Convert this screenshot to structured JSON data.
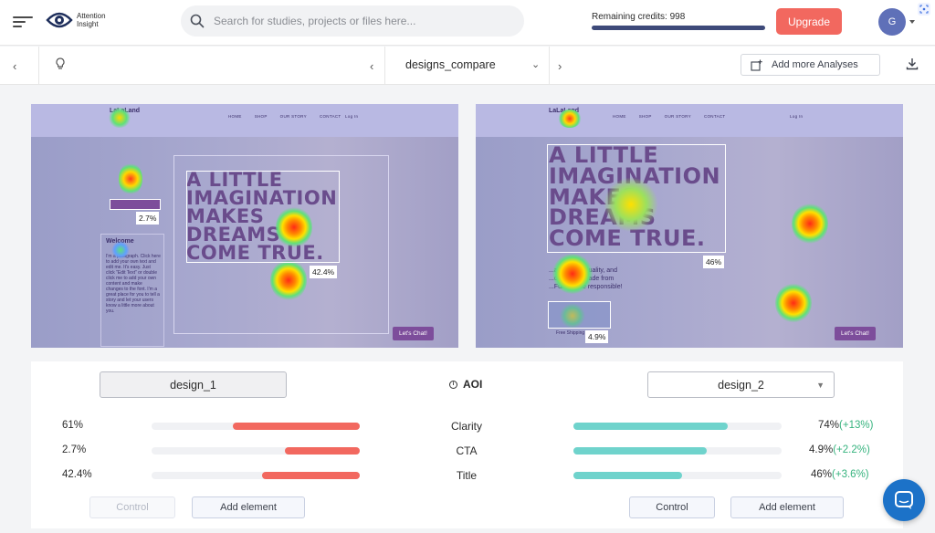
{
  "app": {
    "logo_line1": "Attention",
    "logo_line2": "Insight"
  },
  "search": {
    "placeholder": "Search for studies, projects or files here..."
  },
  "credits": {
    "label": "Remaining credits: 998",
    "fill_fraction": 1.0
  },
  "upgrade_label": "Upgrade",
  "avatar_initial": "G",
  "toolbar": {
    "dropdown_value": "designs_compare",
    "add_analyses_label": "Add more Analyses"
  },
  "designs": {
    "left": {
      "logo_text": "LaLaLand",
      "menu": [
        "HOME",
        "SHOP",
        "OUR STORY",
        "CONTACT"
      ],
      "login_text": "Log In",
      "headline": [
        "A LITTLE",
        "IMAGINATION",
        "MAKES",
        "DREAMS",
        "COME TRUE."
      ],
      "side_title": "Welcome",
      "side_paragraph": "I'm a paragraph. Click here to add your own text and edit me. It's easy. Just click \"Edit Text\" or double click me to add your own content and make changes to the font. I'm a great place for you to tell a story and let your users know a little more about you.",
      "aoi_cta_label": "2.7%",
      "aoi_title_label": "42.4%",
      "chat_label": "Let's Chat!"
    },
    "right": {
      "logo_text": "LaLaLand",
      "menu": [
        "HOME",
        "SHOP",
        "OUR STORY",
        "CONTACT"
      ],
      "login_text": "Log In",
      "headline": [
        "A LITTLE",
        "IMAGINATION",
        "MAKES",
        "DREAMS",
        "COME TRUE."
      ],
      "sub_line1": "...ative, high quality, and",
      "sub_line2": "...costumes made from",
      "sub_line3": "...Fun can be responsible!",
      "aoi_title_label": "46%",
      "aoi_cta_label": "4.9%",
      "shop_text": "Free Shipping",
      "chat_label": "Let's Chat!"
    }
  },
  "comparison": {
    "left_design": "design_1",
    "right_design": "design_2",
    "heading": "AOI",
    "rows": [
      {
        "name": "Clarity",
        "left_value": "61%",
        "left_fraction": 0.61,
        "right_value": "74%",
        "right_delta": "(+13%)",
        "right_fraction": 0.74
      },
      {
        "name": "CTA",
        "left_value": "2.7%",
        "left_fraction": 0.36,
        "right_value": "4.9%",
        "right_delta": "(+2.2%)",
        "right_fraction": 0.64
      },
      {
        "name": "Title",
        "left_value": "42.4%",
        "left_fraction": 0.47,
        "right_value": "46%",
        "right_delta": "(+3.6%)",
        "right_fraction": 0.52
      }
    ],
    "left_buttons": {
      "control": "Control",
      "add": "Add element"
    },
    "right_buttons": {
      "control": "Control",
      "add": "Add element"
    }
  }
}
